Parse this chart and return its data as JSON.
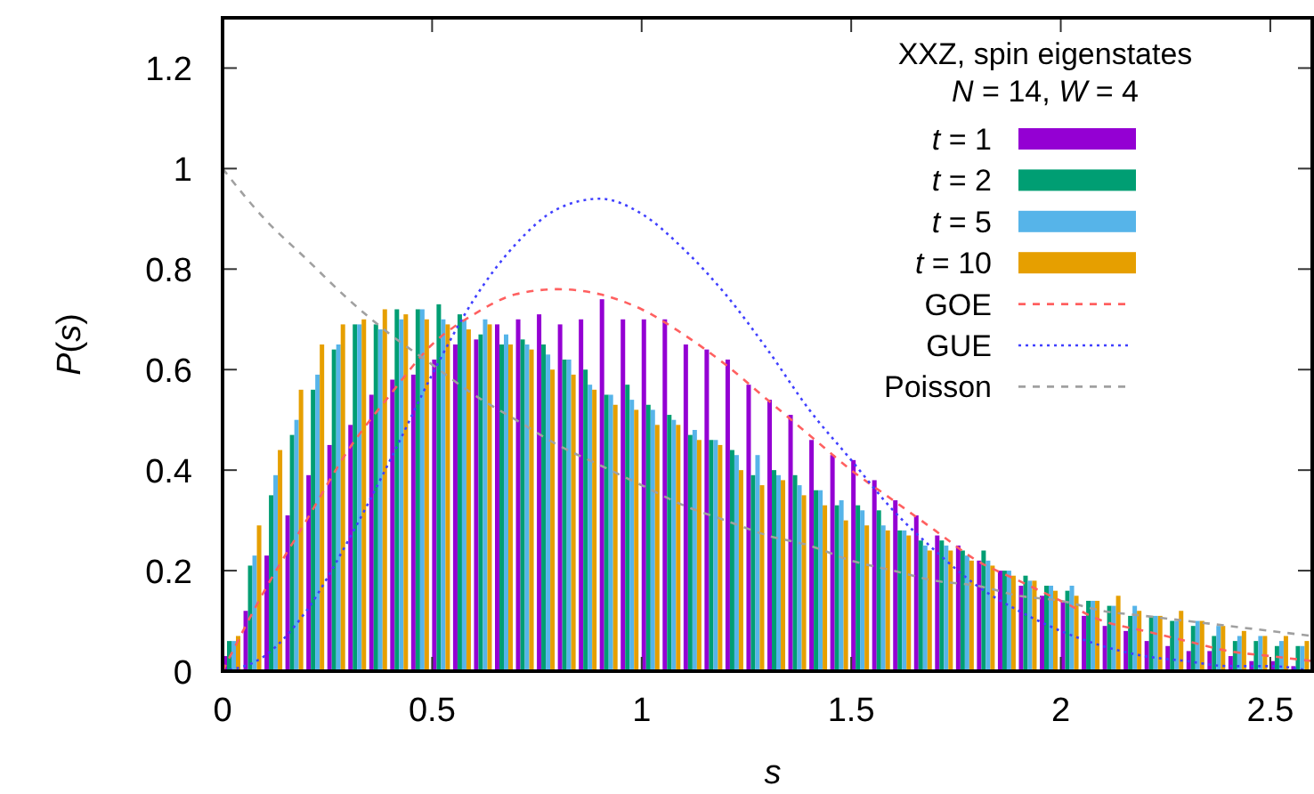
{
  "chart_data": {
    "type": "histogram",
    "xlabel": "s",
    "ylabel": "P(s)",
    "legend_title": "XXZ, spin eigenstates\nN = 14, W = 4",
    "legend": "top right",
    "grid": false,
    "xlim": [
      0,
      2.6
    ],
    "xticks": [
      0,
      0.5,
      1,
      1.5,
      2,
      2.5
    ],
    "ylim": [
      0,
      1.3
    ],
    "yticks": [
      0,
      0.2,
      0.4,
      0.6,
      0.8,
      1,
      1.2
    ],
    "bins": [
      0,
      0.05,
      0.1,
      0.15,
      0.2,
      0.25,
      0.3,
      0.35,
      0.4,
      0.45,
      0.5,
      0.55,
      0.6,
      0.65,
      0.7,
      0.75,
      0.8,
      0.85,
      0.9,
      0.95,
      1,
      1.05,
      1.1,
      1.15,
      1.2,
      1.25,
      1.3,
      1.35,
      1.4,
      1.45,
      1.5,
      1.55,
      1.6,
      1.65,
      1.7,
      1.75,
      1.8,
      1.85,
      1.9,
      1.95,
      2,
      2.05,
      2.1,
      2.15,
      2.2,
      2.25,
      2.3,
      2.35,
      2.4,
      2.45,
      2.5,
      2.55,
      2.6
    ],
    "series": [
      {
        "name": "t = 1",
        "color": "#9400d3",
        "values": [
          0.03,
          0.12,
          0.23,
          0.31,
          0.39,
          0.45,
          0.49,
          0.55,
          0.58,
          0.59,
          0.62,
          0.65,
          0.66,
          0.69,
          0.7,
          0.71,
          0.69,
          0.7,
          0.74,
          0.7,
          0.7,
          0.7,
          0.65,
          0.64,
          0.62,
          0.57,
          0.54,
          0.51,
          0.46,
          0.43,
          0.42,
          0.38,
          0.34,
          0.31,
          0.27,
          0.25,
          0.22,
          0.2,
          0.17,
          0.15,
          0.14,
          0.11,
          0.09,
          0.08,
          0.06,
          0.05,
          0.04,
          0.04,
          0.03,
          0.02,
          0.02,
          0.01
        ]
      },
      {
        "name": "t = 2",
        "color": "#009e73",
        "values": [
          0.06,
          0.21,
          0.35,
          0.47,
          0.56,
          0.64,
          0.69,
          0.69,
          0.72,
          0.72,
          0.73,
          0.71,
          0.67,
          0.65,
          0.66,
          0.65,
          0.62,
          0.6,
          0.55,
          0.57,
          0.53,
          0.51,
          0.47,
          0.46,
          0.44,
          0.39,
          0.4,
          0.39,
          0.36,
          0.33,
          0.33,
          0.32,
          0.28,
          0.26,
          0.26,
          0.24,
          0.24,
          0.2,
          0.19,
          0.17,
          0.16,
          0.14,
          0.13,
          0.11,
          0.11,
          0.1,
          0.09,
          0.07,
          0.06,
          0.06,
          0.05,
          0.05
        ]
      },
      {
        "name": "t = 5",
        "color": "#56b4e9",
        "values": [
          0.06,
          0.23,
          0.39,
          0.5,
          0.59,
          0.65,
          0.69,
          0.68,
          0.7,
          0.72,
          0.7,
          0.7,
          0.7,
          0.67,
          0.65,
          0.63,
          0.62,
          0.57,
          0.55,
          0.54,
          0.52,
          0.5,
          0.48,
          0.46,
          0.43,
          0.43,
          0.39,
          0.37,
          0.36,
          0.34,
          0.32,
          0.29,
          0.28,
          0.25,
          0.25,
          0.23,
          0.22,
          0.2,
          0.18,
          0.17,
          0.17,
          0.14,
          0.13,
          0.13,
          0.11,
          0.1,
          0.1,
          0.09,
          0.07,
          0.07,
          0.06,
          0.05
        ]
      },
      {
        "name": "t = 10",
        "color": "#e69f00",
        "values": [
          0.07,
          0.29,
          0.44,
          0.56,
          0.65,
          0.69,
          0.7,
          0.72,
          0.71,
          0.7,
          0.69,
          0.68,
          0.69,
          0.65,
          0.64,
          0.6,
          0.59,
          0.56,
          0.53,
          0.52,
          0.49,
          0.49,
          0.46,
          0.45,
          0.4,
          0.37,
          0.38,
          0.35,
          0.33,
          0.3,
          0.29,
          0.28,
          0.27,
          0.24,
          0.24,
          0.22,
          0.21,
          0.19,
          0.18,
          0.16,
          0.15,
          0.14,
          0.15,
          0.12,
          0.11,
          0.12,
          0.1,
          0.09,
          0.08,
          0.07,
          0.07,
          0.06
        ]
      },
      {
        "name": "GOE",
        "type": "line",
        "color": "#ff6060",
        "line_style": "dashed",
        "x": [
          0,
          0.1,
          0.2,
          0.3,
          0.4,
          0.5,
          0.6,
          0.7,
          0.8,
          0.9,
          1,
          1.1,
          1.2,
          1.3,
          1.4,
          1.5,
          1.6,
          1.7,
          1.8,
          1.9,
          2,
          2.1,
          2.2,
          2.3,
          2.4,
          2.5,
          2.6
        ],
        "values": [
          0,
          0.16,
          0.3,
          0.44,
          0.55,
          0.65,
          0.71,
          0.75,
          0.76,
          0.75,
          0.72,
          0.67,
          0.61,
          0.54,
          0.47,
          0.4,
          0.34,
          0.28,
          0.22,
          0.18,
          0.14,
          0.1,
          0.08,
          0.06,
          0.04,
          0.03,
          0.02
        ]
      },
      {
        "name": "GUE",
        "type": "line",
        "color": "#4040ff",
        "line_style": "dotted",
        "x": [
          0,
          0.1,
          0.2,
          0.3,
          0.4,
          0.5,
          0.6,
          0.7,
          0.8,
          0.9,
          1,
          1.1,
          1.2,
          1.3,
          1.4,
          1.5,
          1.6,
          1.7,
          1.8,
          1.9,
          2,
          2.1,
          2.2,
          2.3,
          2.4,
          2.5,
          2.6
        ],
        "values": [
          0,
          0.03,
          0.12,
          0.26,
          0.42,
          0.59,
          0.74,
          0.85,
          0.92,
          0.94,
          0.91,
          0.84,
          0.75,
          0.64,
          0.52,
          0.42,
          0.32,
          0.24,
          0.17,
          0.12,
          0.08,
          0.05,
          0.03,
          0.02,
          0.01,
          0.01,
          0
        ]
      },
      {
        "name": "Poisson",
        "type": "line",
        "color": "#a0a0a0",
        "line_style": "dashed",
        "x": [
          0,
          0.1,
          0.2,
          0.3,
          0.4,
          0.5,
          0.6,
          0.7,
          0.8,
          0.9,
          1,
          1.1,
          1.2,
          1.3,
          1.4,
          1.5,
          1.6,
          1.7,
          1.8,
          1.9,
          2,
          2.1,
          2.2,
          2.3,
          2.4,
          2.5,
          2.6
        ],
        "values": [
          1,
          0.9,
          0.82,
          0.74,
          0.67,
          0.61,
          0.55,
          0.5,
          0.45,
          0.41,
          0.37,
          0.33,
          0.3,
          0.27,
          0.25,
          0.22,
          0.2,
          0.18,
          0.17,
          0.15,
          0.14,
          0.12,
          0.11,
          0.1,
          0.09,
          0.08,
          0.07
        ]
      }
    ]
  }
}
